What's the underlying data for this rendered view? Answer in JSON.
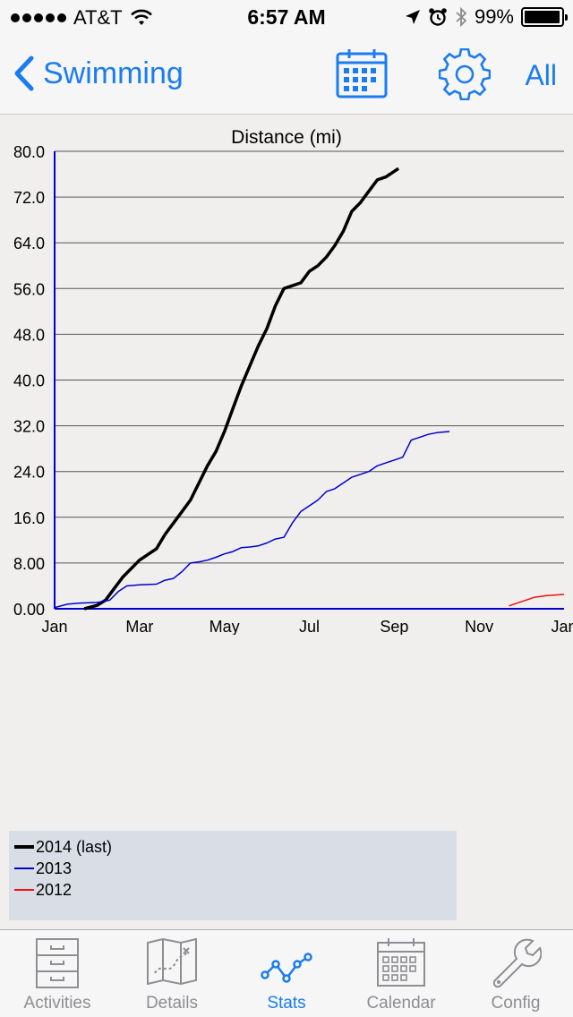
{
  "status_bar": {
    "carrier": "AT&T",
    "time": "6:57 AM",
    "battery_pct": "99%"
  },
  "nav": {
    "back_label": "Swimming",
    "all_label": "All",
    "icons": [
      "calendar-icon",
      "gear-icon"
    ]
  },
  "chart_data": {
    "type": "line",
    "title": "Distance (mi)",
    "xlabel": "",
    "ylabel": "",
    "x_ticks": [
      "Jan",
      "Mar",
      "May",
      "Jul",
      "Sep",
      "Nov",
      "Jan"
    ],
    "y_ticks": [
      "0.00",
      "8.00",
      "16.0",
      "24.0",
      "32.0",
      "40.0",
      "48.0",
      "56.0",
      "64.0",
      "72.0",
      "80.0"
    ],
    "xlim": [
      0,
      12
    ],
    "ylim": [
      0,
      80
    ],
    "grid": true,
    "legend": "bottom-left",
    "series": [
      {
        "name": "2014 (last)",
        "color": "#000000",
        "width": 3.5,
        "points": [
          [
            0.7,
            0.0
          ],
          [
            1.0,
            0.6
          ],
          [
            1.2,
            1.5
          ],
          [
            1.4,
            3.5
          ],
          [
            1.6,
            5.5
          ],
          [
            1.8,
            7.0
          ],
          [
            2.0,
            8.5
          ],
          [
            2.2,
            9.5
          ],
          [
            2.4,
            10.5
          ],
          [
            2.6,
            13.0
          ],
          [
            2.8,
            15.0
          ],
          [
            3.0,
            17.0
          ],
          [
            3.2,
            19.0
          ],
          [
            3.4,
            22.0
          ],
          [
            3.6,
            25.0
          ],
          [
            3.8,
            27.5
          ],
          [
            4.0,
            31.0
          ],
          [
            4.2,
            35.0
          ],
          [
            4.4,
            39.0
          ],
          [
            4.6,
            42.5
          ],
          [
            4.8,
            46.0
          ],
          [
            5.0,
            49.0
          ],
          [
            5.2,
            53.0
          ],
          [
            5.4,
            56.0
          ],
          [
            5.6,
            56.5
          ],
          [
            5.8,
            57.0
          ],
          [
            6.0,
            59.0
          ],
          [
            6.2,
            60.0
          ],
          [
            6.4,
            61.5
          ],
          [
            6.6,
            63.5
          ],
          [
            6.8,
            66.0
          ],
          [
            7.0,
            69.5
          ],
          [
            7.2,
            71.0
          ],
          [
            7.4,
            73.0
          ],
          [
            7.6,
            75.0
          ],
          [
            7.8,
            75.5
          ],
          [
            8.0,
            76.5
          ],
          [
            8.1,
            77.0
          ]
        ]
      },
      {
        "name": "2013",
        "color": "#0000cc",
        "width": 1.5,
        "points": [
          [
            0.0,
            0.2
          ],
          [
            0.3,
            0.8
          ],
          [
            0.6,
            1.0
          ],
          [
            1.0,
            1.1
          ],
          [
            1.3,
            1.5
          ],
          [
            1.5,
            3.0
          ],
          [
            1.7,
            4.0
          ],
          [
            2.0,
            4.2
          ],
          [
            2.4,
            4.3
          ],
          [
            2.6,
            5.0
          ],
          [
            2.8,
            5.3
          ],
          [
            3.0,
            6.5
          ],
          [
            3.2,
            8.0
          ],
          [
            3.4,
            8.2
          ],
          [
            3.6,
            8.5
          ],
          [
            3.8,
            9.0
          ],
          [
            4.0,
            9.6
          ],
          [
            4.2,
            10.0
          ],
          [
            4.4,
            10.7
          ],
          [
            4.6,
            10.8
          ],
          [
            4.8,
            11.0
          ],
          [
            5.0,
            11.5
          ],
          [
            5.2,
            12.2
          ],
          [
            5.4,
            12.5
          ],
          [
            5.6,
            15.0
          ],
          [
            5.8,
            17.0
          ],
          [
            6.0,
            18.0
          ],
          [
            6.2,
            19.0
          ],
          [
            6.4,
            20.5
          ],
          [
            6.6,
            21.0
          ],
          [
            6.8,
            22.0
          ],
          [
            7.0,
            23.0
          ],
          [
            7.2,
            23.5
          ],
          [
            7.4,
            24.0
          ],
          [
            7.6,
            25.0
          ],
          [
            7.8,
            25.5
          ],
          [
            8.0,
            26.0
          ],
          [
            8.2,
            26.5
          ],
          [
            8.4,
            29.5
          ],
          [
            8.6,
            30.0
          ],
          [
            8.8,
            30.5
          ],
          [
            9.0,
            30.8
          ],
          [
            9.3,
            31.0
          ]
        ]
      },
      {
        "name": "2012",
        "color": "#ee1111",
        "width": 1.5,
        "points": [
          [
            10.7,
            0.5
          ],
          [
            10.9,
            1.0
          ],
          [
            11.1,
            1.5
          ],
          [
            11.3,
            2.0
          ],
          [
            11.6,
            2.3
          ],
          [
            12.0,
            2.5
          ]
        ]
      }
    ]
  },
  "tabs": [
    {
      "label": "Activities",
      "icon": "file-cabinet-icon",
      "active": false
    },
    {
      "label": "Details",
      "icon": "map-icon",
      "active": false
    },
    {
      "label": "Stats",
      "icon": "stats-line-icon",
      "active": true
    },
    {
      "label": "Calendar",
      "icon": "calendar-icon",
      "active": false
    },
    {
      "label": "Config",
      "icon": "wrench-icon",
      "active": false
    }
  ]
}
